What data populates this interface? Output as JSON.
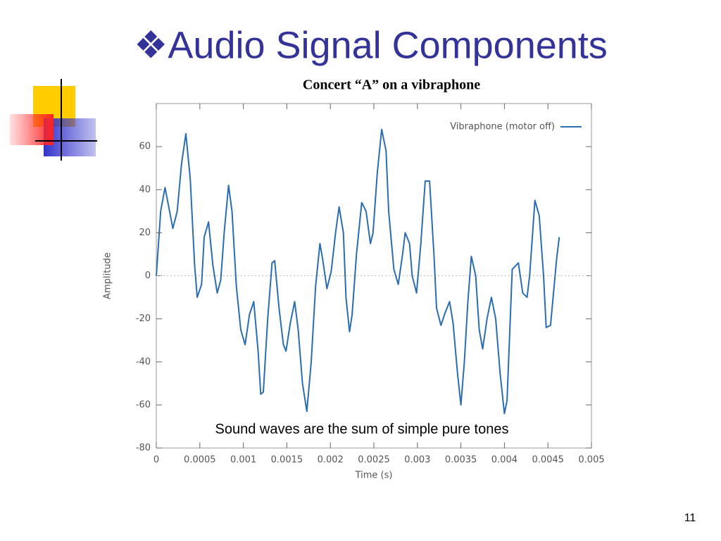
{
  "slide": {
    "title": "❖Audio Signal Components",
    "page_number": "11"
  },
  "chart_data": {
    "type": "line",
    "title": "Concert “A” on a vibraphone",
    "annotation": "Sound waves are the sum of simple pure tones",
    "x_label": "Time (s)",
    "y_label": "Amplitude",
    "xlim": [
      0,
      0.005
    ],
    "ylim": [
      -80,
      80
    ],
    "xticks": [
      0,
      0.0005,
      0.001,
      0.0015,
      0.002,
      0.0025,
      0.003,
      0.0035,
      0.004,
      0.0045,
      0.005
    ],
    "yticks": [
      -80,
      -60,
      -40,
      -20,
      0,
      20,
      40,
      60
    ],
    "legend": "upper right",
    "x": [
      0,
      5e-05,
      0.0001,
      0.00019,
      0.00024,
      0.00029,
      0.00034,
      0.00039,
      0.00044,
      0.00047,
      0.00052,
      0.00055,
      0.0006,
      0.00065,
      0.0007,
      0.00074,
      0.00078,
      0.00083,
      0.00087,
      0.00092,
      0.00097,
      0.00102,
      0.00107,
      0.00112,
      0.00117,
      0.0012,
      0.00123,
      0.00128,
      0.00133,
      0.00136,
      0.00141,
      0.00146,
      0.00149,
      0.00154,
      0.00159,
      0.00163,
      0.00168,
      0.00173,
      0.00178,
      0.00183,
      0.00188,
      0.00191,
      0.00196,
      0.00201,
      0.00206,
      0.0021,
      0.00215,
      0.00218,
      0.00222,
      0.00225,
      0.0023,
      0.00236,
      0.00241,
      0.00246,
      0.00249,
      0.00254,
      0.00259,
      0.00264,
      0.00267,
      0.00273,
      0.00278,
      0.00283,
      0.00286,
      0.00291,
      0.00294,
      0.00299,
      0.00304,
      0.00309,
      0.00314,
      0.00319,
      0.00322,
      0.00327,
      0.00332,
      0.00337,
      0.00341,
      0.00346,
      0.0035,
      0.00354,
      0.00358,
      0.00362,
      0.00367,
      0.00371,
      0.00375,
      0.0038,
      0.00385,
      0.0039,
      0.00395,
      0.004,
      0.00403,
      0.00409,
      0.00416,
      0.00421,
      0.00426,
      0.00429,
      0.00435,
      0.0044,
      0.00445,
      0.00448,
      0.00453,
      0.0046,
      0.00463
    ],
    "series": [
      {
        "name": "Vibraphone (motor off)",
        "color": "#2a6db0",
        "values": [
          0,
          30,
          41,
          22,
          30,
          52,
          66,
          45,
          5,
          -10,
          -4,
          18,
          25,
          5,
          -8,
          -2,
          20,
          42,
          30,
          -5,
          -25,
          -32,
          -18,
          -12,
          -35,
          -55,
          -54,
          -20,
          6,
          7,
          -15,
          -32,
          -35,
          -22,
          -12,
          -25,
          -50,
          -63,
          -40,
          -5,
          15,
          8,
          -6,
          2,
          20,
          32,
          20,
          -10,
          -26,
          -18,
          10,
          34,
          30,
          15,
          20,
          48,
          68,
          58,
          30,
          3,
          -4,
          10,
          20,
          15,
          0,
          -8,
          15,
          44,
          44,
          10,
          -15,
          -23,
          -17,
          -12,
          -22,
          -45,
          -60,
          -40,
          -12,
          9,
          0,
          -25,
          -34,
          -20,
          -10,
          -20,
          -45,
          -64,
          -58,
          3,
          6,
          -8,
          -10,
          0,
          35,
          28,
          0,
          -24,
          -23,
          8,
          18
        ]
      }
    ]
  }
}
